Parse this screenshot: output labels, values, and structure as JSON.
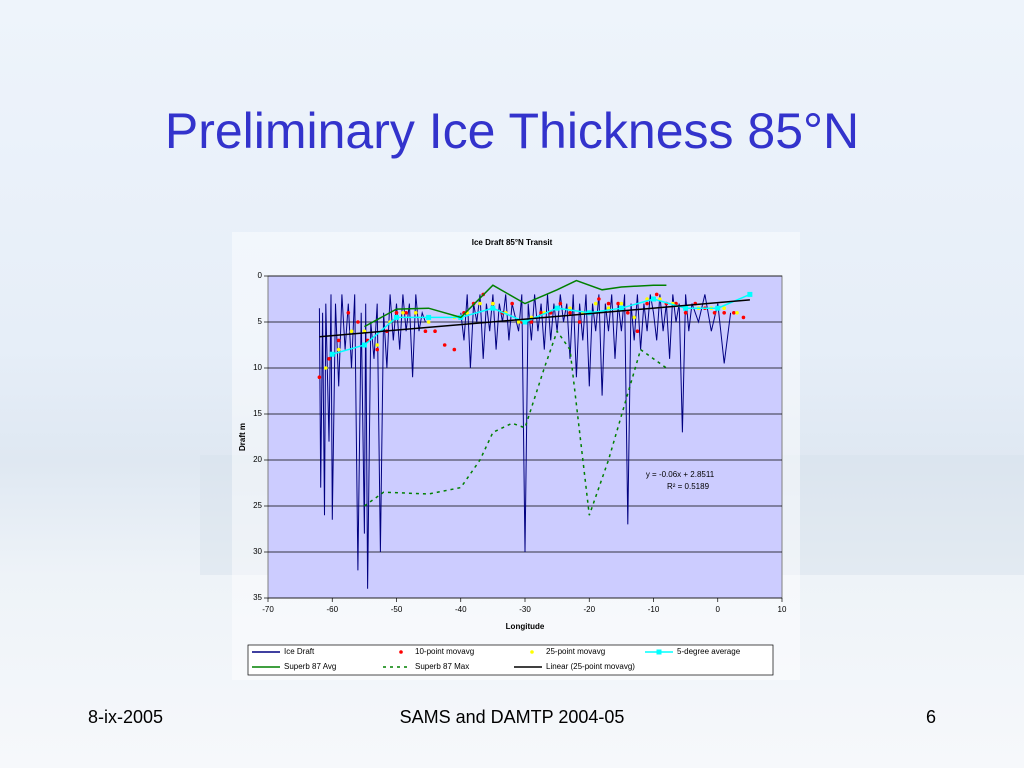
{
  "slide": {
    "title": "Preliminary Ice Thickness 85°N",
    "footer_left": "8-ix-2005",
    "footer_center": "SAMS and DAMTP 2004-05",
    "footer_right": "6"
  },
  "chart_data": {
    "type": "line",
    "title": "Ice Draft 85°N Transit",
    "x_label": "Longitude",
    "y_label": "Draft m",
    "xlim": [
      -70,
      10
    ],
    "xticks": [
      -70,
      -60,
      -50,
      -40,
      -30,
      -20,
      -10,
      0,
      10
    ],
    "ylim": [
      0,
      35
    ],
    "yticks": [
      0,
      5,
      10,
      15,
      20,
      25,
      30,
      35
    ],
    "y_inverted": true,
    "grid": true,
    "legend": "bottom",
    "annotations": [
      "y = -0.06x + 2.8511",
      "R² = 0.5189"
    ],
    "series": [
      {
        "name": "Ice Draft",
        "color": "#000080",
        "style": "line",
        "x": [
          -62,
          -61.8,
          -61.5,
          -61.2,
          -61,
          -60.5,
          -60.2,
          -60,
          -59.5,
          -59,
          -58.5,
          -58,
          -57.5,
          -57,
          -56.5,
          -56,
          -55.5,
          -55,
          -54.8,
          -54.5,
          -54,
          -53.5,
          -53,
          -52.5,
          -52,
          -51.5,
          -51,
          -50.5,
          -50,
          -49.5,
          -49,
          -48.5,
          -48,
          -47.5,
          -47,
          -46.5,
          -46,
          -45.5,
          -43,
          -40,
          -39.5,
          -39,
          -38.5,
          -38,
          -37.5,
          -37,
          -36.5,
          -36,
          -35.5,
          -35,
          -34.5,
          -34,
          -33.5,
          -33,
          -32.5,
          -32,
          -31,
          -30.5,
          -30,
          -29.5,
          -29,
          -28.5,
          -28,
          -27.5,
          -27,
          -26.5,
          -26,
          -25.5,
          -25,
          -24.5,
          -24,
          -23.5,
          -23,
          -22.5,
          -22,
          -21.5,
          -21,
          -20.5,
          -20,
          -19.5,
          -19,
          -18.5,
          -18,
          -17.5,
          -17,
          -16.5,
          -16,
          -15.5,
          -15,
          -14.5,
          -14,
          -13.5,
          -13,
          -12.5,
          -12,
          -11.5,
          -11,
          -10.5,
          -10,
          -9.5,
          -9,
          -8.5,
          -8,
          -7.5,
          -7,
          -6.5,
          -6,
          -5.5,
          -5,
          -4.5,
          -4,
          -3,
          -2,
          -1,
          0,
          1,
          2
        ],
        "values": [
          3.5,
          23,
          4,
          26,
          3,
          18,
          2,
          26.5,
          3,
          12,
          2,
          8,
          3,
          10,
          2,
          32,
          4,
          28,
          3,
          34,
          5,
          9,
          3,
          30,
          4,
          10,
          2,
          7,
          3,
          8,
          2,
          6,
          3,
          11,
          2,
          6,
          4,
          5,
          null,
          4,
          7,
          2,
          10,
          3,
          5,
          2,
          9,
          3,
          6,
          2,
          8,
          3,
          5,
          2,
          7,
          3,
          6,
          2,
          30,
          3,
          7,
          2,
          6,
          3,
          8,
          2,
          7,
          3,
          6,
          2,
          5,
          3,
          9,
          2,
          11,
          3,
          7,
          2,
          12,
          3,
          6,
          2,
          13,
          3,
          6,
          2,
          9,
          3,
          6,
          2,
          27,
          3,
          7,
          2,
          8,
          3,
          6,
          2,
          4,
          7,
          2,
          6,
          3,
          9,
          2,
          5,
          3,
          17,
          2,
          6,
          3,
          5,
          2,
          6,
          3,
          9.5,
          4
        ]
      },
      {
        "name": "10-point movavg",
        "color": "#ff0000",
        "style": "markers",
        "x": [
          -62,
          -60.5,
          -59,
          -57.5,
          -56,
          -54.5,
          -53,
          -51.5,
          -50,
          -48.5,
          -47,
          -45.5,
          -44,
          -42.5,
          -41,
          -39.5,
          -38,
          -36.5,
          -35,
          -33.5,
          -32,
          -30.5,
          -29,
          -27.5,
          -26,
          -24.5,
          -23,
          -21.5,
          -20,
          -18.5,
          -17,
          -15.5,
          -14,
          -12.5,
          -11,
          -9.5,
          -8,
          -6.5,
          -5,
          -3.5,
          -2,
          -0.5,
          1,
          2.5,
          4
        ],
        "values": [
          11,
          9,
          7,
          4,
          5,
          7,
          8,
          6,
          4,
          4,
          4,
          6,
          6,
          7.5,
          8,
          4,
          3,
          2,
          3,
          4,
          3,
          5,
          5,
          4,
          4,
          3,
          4,
          5,
          4,
          2.5,
          3,
          3,
          4,
          6,
          3,
          2,
          3,
          3,
          4,
          3,
          3.5,
          4,
          4,
          4,
          4.5
        ]
      },
      {
        "name": "25-point movavg",
        "color": "#ffff00",
        "style": "markers",
        "x": [
          -61,
          -59,
          -57,
          -55,
          -53,
          -51,
          -49,
          -47,
          -45,
          -41,
          -39,
          -37,
          -35,
          -33,
          -31,
          -29,
          -27,
          -25,
          -23,
          -21,
          -19,
          -17,
          -15,
          -13,
          -11,
          -9,
          -7,
          -5,
          -3,
          -1,
          1,
          3
        ],
        "values": [
          10,
          8,
          6,
          6,
          7.5,
          5,
          4,
          4,
          5,
          4.5,
          4,
          3,
          3,
          4,
          5,
          4.5,
          4,
          3.5,
          3.5,
          4,
          3,
          3.5,
          3,
          4.5,
          2.5,
          2.5,
          3,
          3.5,
          3.5,
          3.5,
          3.5,
          4
        ]
      },
      {
        "name": "5-degree average",
        "color": "#00ffff",
        "style": "line-markers",
        "x": [
          -60,
          -55,
          -50,
          -45,
          -40,
          -35,
          -30,
          -25,
          -20,
          -15,
          -10,
          -5,
          0,
          5
        ],
        "values": [
          8.5,
          7.5,
          4.5,
          4.5,
          4.5,
          3.5,
          5,
          3.5,
          4,
          3.5,
          2.5,
          3.5,
          3.5,
          2
        ]
      },
      {
        "name": "Superb 87 Avg",
        "color": "#008000",
        "style": "line",
        "x": [
          -55,
          -50,
          -45,
          -40,
          -35,
          -30,
          -25,
          -22,
          -18,
          -15,
          -10,
          -8
        ],
        "values": [
          5.5,
          3.6,
          3.5,
          4.5,
          1,
          3,
          1.5,
          0.5,
          1.5,
          1.2,
          1,
          1
        ]
      },
      {
        "name": "Superb 87 Max",
        "color": "#008000",
        "style": "dashed",
        "x": [
          -55,
          -52,
          -45,
          -40,
          -37,
          -35,
          -32,
          -30,
          -27,
          -25,
          -23,
          -20,
          -17,
          -12,
          -8
        ],
        "values": [
          25,
          23.5,
          23.7,
          23,
          20,
          17,
          16,
          16.5,
          10,
          6,
          8,
          26,
          20,
          8,
          10
        ]
      },
      {
        "name": "Linear (25-point movavg)",
        "color": "#000000",
        "style": "line",
        "x": [
          -62,
          5
        ],
        "values": [
          6.6,
          2.6
        ]
      }
    ]
  }
}
